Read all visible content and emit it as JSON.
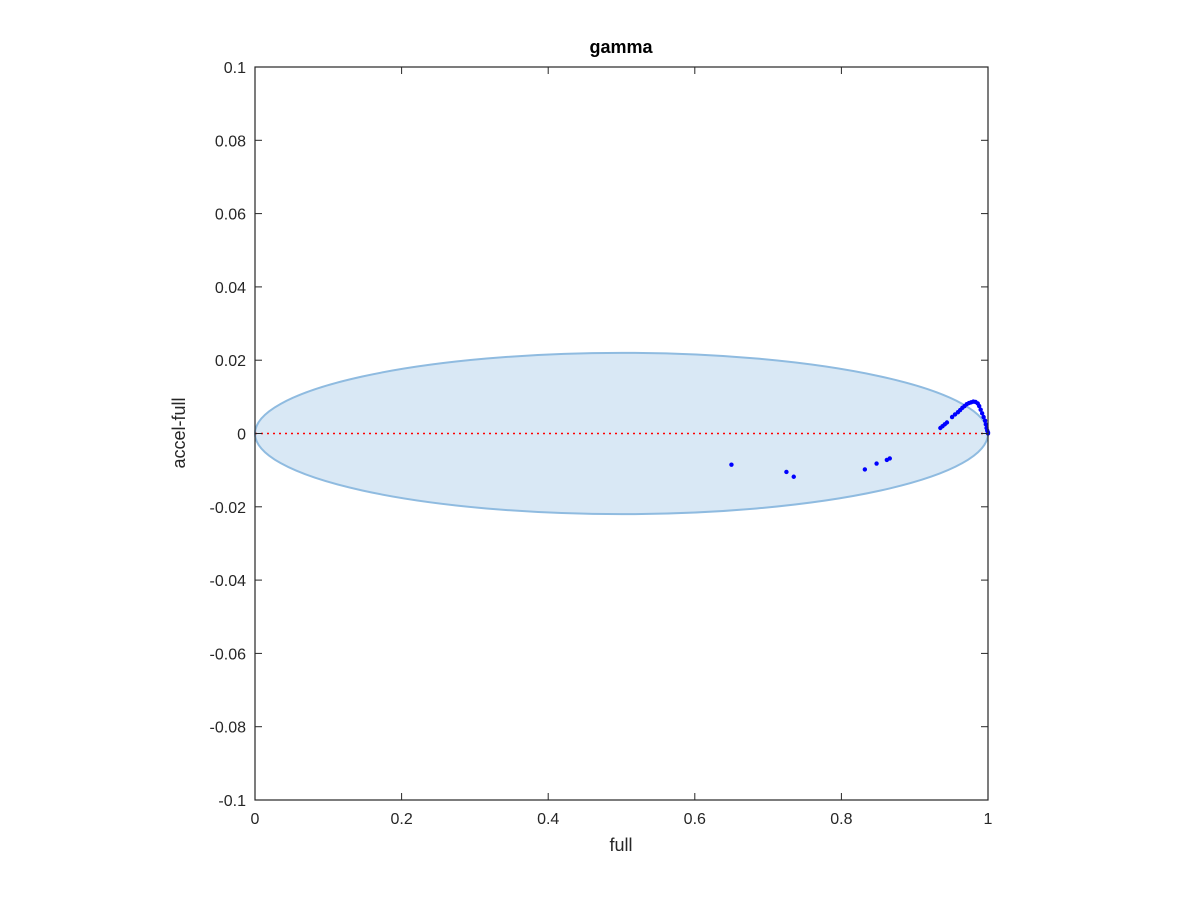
{
  "chart_data": {
    "type": "scatter",
    "title": "gamma",
    "xlabel": "full",
    "ylabel": "accel-full",
    "xlim": [
      0,
      1
    ],
    "ylim": [
      -0.1,
      0.1
    ],
    "x_ticks": [
      0,
      0.2,
      0.4,
      0.6,
      0.8,
      1
    ],
    "x_tick_labels": [
      "0",
      "0.2",
      "0.4",
      "0.6",
      "0.8",
      "1"
    ],
    "y_ticks": [
      -0.1,
      -0.08,
      -0.06,
      -0.04,
      -0.02,
      0,
      0.02,
      0.04,
      0.06,
      0.08,
      0.1
    ],
    "y_tick_labels": [
      "-0.1",
      "-0.08",
      "-0.06",
      "-0.04",
      "-0.02",
      "0",
      "0.02",
      "0.04",
      "0.06",
      "0.08",
      "0.1"
    ],
    "grid": false,
    "reference_line": {
      "y": 0,
      "color": "#ff0000",
      "style": "dotted"
    },
    "ellipse": {
      "center": [
        0.5,
        0
      ],
      "x_radius": 0.5,
      "y_radius": 0.022,
      "fill": "#d9e8f5",
      "stroke": "#8fbbe0"
    },
    "series": [
      {
        "color": "#0000ff",
        "x": [
          0.65,
          0.725,
          0.735,
          0.832,
          0.848,
          0.862,
          0.866,
          0.935,
          0.938,
          0.941,
          0.944,
          0.951,
          0.955,
          0.959,
          0.962,
          0.965,
          0.968,
          0.971,
          0.974,
          0.977,
          0.98,
          0.983,
          0.986,
          0.988,
          0.99,
          0.992,
          0.994,
          0.996,
          0.997,
          0.998,
          0.999,
          1.0,
          1.0
        ],
        "y": [
          -0.0085,
          -0.0105,
          -0.0118,
          -0.0098,
          -0.0082,
          -0.0072,
          -0.0068,
          0.0015,
          0.002,
          0.0025,
          0.003,
          0.0045,
          0.0052,
          0.0058,
          0.0064,
          0.007,
          0.0075,
          0.008,
          0.0083,
          0.0085,
          0.0087,
          0.0086,
          0.0082,
          0.0075,
          0.0065,
          0.0055,
          0.0045,
          0.0035,
          0.0025,
          0.0015,
          0.0008,
          0.0003,
          0.0
        ]
      }
    ]
  }
}
